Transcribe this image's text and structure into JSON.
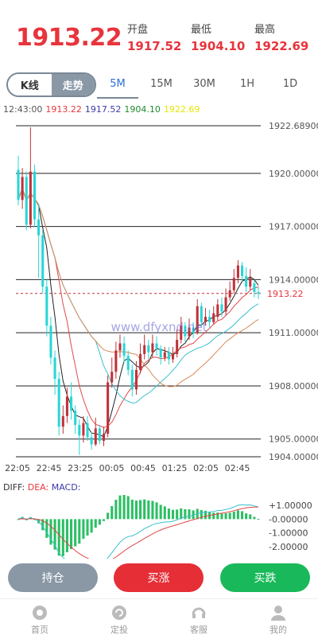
{
  "header": {
    "price": "1913.22",
    "open_label": "开盘",
    "open_value": "1917.52",
    "low_label": "最低",
    "low_value": "1904.10",
    "high_label": "最高",
    "high_value": "1922.69"
  },
  "mode_toggle": {
    "kline_label": "K线",
    "trend_label": "走势",
    "selected": "K线"
  },
  "timeframes": [
    {
      "label": "5M",
      "active": true
    },
    {
      "label": "15M",
      "active": false
    },
    {
      "label": "30M",
      "active": false
    },
    {
      "label": "1H",
      "active": false
    },
    {
      "label": "1D",
      "active": false
    }
  ],
  "info_row": {
    "time": "12:43:00",
    "close": "1913.22",
    "open": "1917.52",
    "low": "1904.10",
    "high": "1922.69"
  },
  "chart_data": [
    {
      "type": "candlestick",
      "title": "",
      "y_ticks": [
        "1922.68900",
        "1920.00000",
        "1917.00000",
        "1914.00000",
        "1911.00000",
        "1908.00000",
        "1905.00000",
        "1904.00000"
      ],
      "x_ticks": [
        "22:05",
        "22:45",
        "23:25",
        "00:05",
        "00:45",
        "01:25",
        "02:05",
        "02:45"
      ],
      "current_price_label": "1913.22",
      "ylim": [
        1904.0,
        1922.689
      ],
      "watermark": "www.dfyxnd.net",
      "candles": [
        [
          1920.2,
          1918.5,
          1921.0,
          1918.2
        ],
        [
          1918.5,
          1919.8,
          1920.3,
          1918.0
        ],
        [
          1919.8,
          1917.1,
          1920.1,
          1916.8
        ],
        [
          1917.1,
          1920.1,
          1922.6,
          1916.9
        ],
        [
          1920.1,
          1917.4,
          1920.5,
          1917.0
        ],
        [
          1917.4,
          1916.5,
          1918.3,
          1914.1
        ],
        [
          1916.5,
          1913.6,
          1916.8,
          1913.2
        ],
        [
          1913.6,
          1911.4,
          1914.0,
          1910.8
        ],
        [
          1911.4,
          1909.6,
          1911.9,
          1909.2
        ],
        [
          1909.6,
          1908.4,
          1910.0,
          1907.5
        ],
        [
          1908.4,
          1905.7,
          1908.8,
          1905.2
        ],
        [
          1905.7,
          1906.3,
          1906.9,
          1905.3
        ],
        [
          1906.3,
          1907.4,
          1907.9,
          1905.9
        ],
        [
          1907.4,
          1906.6,
          1908.2,
          1906.1
        ],
        [
          1906.6,
          1905.8,
          1906.9,
          1905.3
        ],
        [
          1905.8,
          1905.2,
          1906.1,
          1904.1
        ],
        [
          1905.2,
          1905.9,
          1906.3,
          1904.8
        ],
        [
          1905.9,
          1905.1,
          1906.3,
          1904.9
        ],
        [
          1905.1,
          1904.7,
          1905.4,
          1904.4
        ],
        [
          1904.7,
          1905.6,
          1906.2,
          1904.6
        ],
        [
          1905.6,
          1904.9,
          1905.8,
          1904.7
        ],
        [
          1904.9,
          1905.3,
          1905.7,
          1904.6
        ],
        [
          1905.3,
          1908.2,
          1908.6,
          1905.1
        ],
        [
          1908.2,
          1908.8,
          1909.6,
          1907.9
        ],
        [
          1908.8,
          1910.0,
          1910.5,
          1908.4
        ],
        [
          1910.0,
          1910.4,
          1910.9,
          1909.6
        ],
        [
          1910.4,
          1909.7,
          1910.8,
          1909.3
        ],
        [
          1909.7,
          1908.9,
          1910.0,
          1908.6
        ],
        [
          1908.9,
          1907.8,
          1909.2,
          1907.4
        ],
        [
          1907.8,
          1908.9,
          1909.4,
          1907.5
        ],
        [
          1908.9,
          1909.8,
          1910.4,
          1908.7
        ],
        [
          1909.8,
          1910.3,
          1910.9,
          1909.5
        ],
        [
          1910.3,
          1909.9,
          1910.6,
          1909.5
        ],
        [
          1909.9,
          1910.4,
          1910.9,
          1909.6
        ],
        [
          1910.4,
          1910.1,
          1910.8,
          1909.7
        ],
        [
          1910.1,
          1909.6,
          1910.3,
          1909.2
        ],
        [
          1909.6,
          1909.9,
          1910.2,
          1909.4
        ],
        [
          1909.9,
          1909.5,
          1910.2,
          1909.2
        ],
        [
          1909.5,
          1909.8,
          1910.2,
          1909.3
        ],
        [
          1909.8,
          1910.6,
          1911.2,
          1909.6
        ],
        [
          1910.6,
          1911.4,
          1911.9,
          1910.4
        ],
        [
          1911.4,
          1910.8,
          1911.6,
          1910.5
        ],
        [
          1910.8,
          1911.3,
          1911.8,
          1910.6
        ],
        [
          1911.3,
          1911.0,
          1911.6,
          1910.7
        ],
        [
          1911.0,
          1912.5,
          1912.9,
          1910.9
        ],
        [
          1912.5,
          1911.6,
          1912.7,
          1911.3
        ],
        [
          1911.6,
          1911.9,
          1912.4,
          1911.4
        ],
        [
          1911.9,
          1911.6,
          1912.3,
          1911.3
        ],
        [
          1911.6,
          1912.1,
          1912.5,
          1911.5
        ],
        [
          1911.9,
          1912.6,
          1912.9,
          1911.7
        ],
        [
          1912.6,
          1912.2,
          1913.0,
          1911.9
        ],
        [
          1912.2,
          1913.0,
          1913.5,
          1912.0
        ],
        [
          1913.0,
          1913.4,
          1913.9,
          1912.8
        ],
        [
          1913.4,
          1914.1,
          1914.6,
          1913.2
        ],
        [
          1914.1,
          1914.8,
          1915.1,
          1913.8
        ],
        [
          1914.8,
          1914.2,
          1915.0,
          1913.9
        ],
        [
          1914.2,
          1913.6,
          1914.7,
          1913.3
        ],
        [
          1913.6,
          1914.1,
          1914.6,
          1913.4
        ],
        [
          1913.8,
          1913.3,
          1914.0,
          1913.0
        ],
        [
          1913.3,
          1913.2,
          1913.6,
          1912.9
        ]
      ]
    },
    {
      "type": "macd",
      "legend": [
        "DIFF:",
        "DEA:",
        "MACD:"
      ],
      "y_ticks": [
        "+1.00000",
        "-0.00000",
        "-1.00000",
        "-2.00000"
      ],
      "ylim": [
        -2.3,
        1.3
      ]
    }
  ],
  "buttons": {
    "hold": "持仓",
    "buy_up": "买涨",
    "buy_down": "买跌"
  },
  "colors": {
    "up": "#c0323a",
    "down": "#2ad6d6",
    "accent_red": "#e8343c",
    "green": "#1dbb5e",
    "grey": "#8a98a6"
  },
  "nav": [
    {
      "label": "首页",
      "icon": "home-icon"
    },
    {
      "label": "定投",
      "icon": "schedule-icon"
    },
    {
      "label": "客服",
      "icon": "headset-icon"
    },
    {
      "label": "我的",
      "icon": "user-icon"
    }
  ]
}
